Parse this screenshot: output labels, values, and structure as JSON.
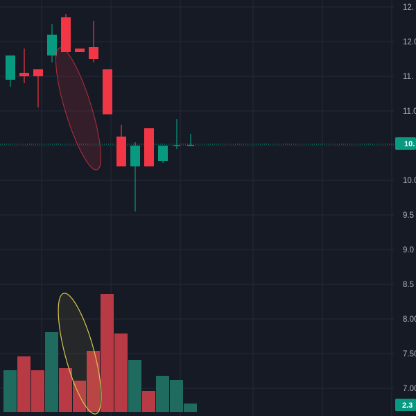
{
  "chart_data": {
    "type": "candlestick",
    "title": "",
    "xlabel": "",
    "ylabel": "",
    "grid": true,
    "colors": {
      "background": "#161a25",
      "grid": "#242936",
      "up": "#089981",
      "down": "#f23645",
      "volume_up": "#1f6b60",
      "volume_down": "#b73a45",
      "axis_text": "#b2b5be",
      "price_line": "#089981",
      "highlight_price": "#f23645",
      "highlight_volume": "#d6c84a"
    },
    "y_axis_ticks": [
      "12.",
      "12.0",
      "11.",
      "11.0",
      "10.",
      "10.0",
      "9.5",
      "9.0",
      "8.5",
      "8.00",
      "7.50",
      "7.00"
    ],
    "y_axis_tick_values": [
      12.5,
      12.0,
      11.5,
      11.0,
      10.5,
      10.0,
      9.5,
      9.0,
      8.5,
      8.0,
      7.5,
      7.0
    ],
    "ylim": [
      6.6,
      12.6
    ],
    "candles": [
      {
        "open": 11.45,
        "high": 11.8,
        "low": 11.35,
        "close": 11.8,
        "dir": "up"
      },
      {
        "open": 11.55,
        "high": 11.9,
        "low": 11.4,
        "close": 11.5,
        "dir": "down"
      },
      {
        "open": 11.6,
        "high": 11.6,
        "low": 11.05,
        "close": 11.5,
        "dir": "down"
      },
      {
        "open": 11.8,
        "high": 12.25,
        "low": 11.7,
        "close": 12.1,
        "dir": "up"
      },
      {
        "open": 12.35,
        "high": 12.4,
        "low": 11.85,
        "close": 11.85,
        "dir": "down"
      },
      {
        "open": 11.9,
        "high": 11.9,
        "low": 11.85,
        "close": 11.85,
        "dir": "down"
      },
      {
        "open": 11.92,
        "high": 12.3,
        "low": 11.7,
        "close": 11.75,
        "dir": "down"
      },
      {
        "open": 11.6,
        "high": 11.6,
        "low": 10.95,
        "close": 10.95,
        "dir": "down"
      },
      {
        "open": 10.63,
        "high": 10.8,
        "low": 10.2,
        "close": 10.2,
        "dir": "down"
      },
      {
        "open": 10.2,
        "high": 10.55,
        "low": 9.55,
        "close": 10.5,
        "dir": "up"
      },
      {
        "open": 10.75,
        "high": 10.75,
        "low": 10.2,
        "close": 10.2,
        "dir": "down"
      },
      {
        "open": 10.28,
        "high": 10.5,
        "low": 10.25,
        "close": 10.5,
        "dir": "up"
      },
      {
        "open": 10.5,
        "high": 10.88,
        "low": 10.45,
        "close": 10.51,
        "dir": "up"
      },
      {
        "open": 10.5,
        "high": 10.67,
        "low": 10.49,
        "close": 10.51,
        "dir": "up"
      }
    ],
    "volume": [
      {
        "value": 0.6,
        "dir": "up"
      },
      {
        "value": 0.8,
        "dir": "down"
      },
      {
        "value": 0.6,
        "dir": "down"
      },
      {
        "value": 1.15,
        "dir": "up"
      },
      {
        "value": 0.63,
        "dir": "down"
      },
      {
        "value": 0.45,
        "dir": "down"
      },
      {
        "value": 0.88,
        "dir": "down"
      },
      {
        "value": 1.7,
        "dir": "down"
      },
      {
        "value": 1.13,
        "dir": "down"
      },
      {
        "value": 0.75,
        "dir": "up"
      },
      {
        "value": 0.3,
        "dir": "down"
      },
      {
        "value": 0.52,
        "dir": "up"
      },
      {
        "value": 0.46,
        "dir": "up"
      },
      {
        "value": 0.12,
        "dir": "up"
      }
    ],
    "last_price_label": "10.",
    "last_volume_label": "2.3"
  }
}
